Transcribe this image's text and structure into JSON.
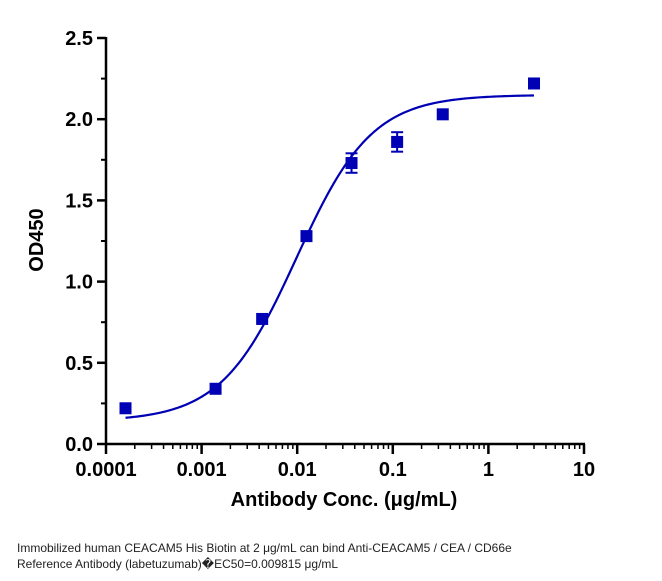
{
  "chart_data": {
    "type": "scatter",
    "xlabel": "Antibody Conc. (μg/mL)",
    "ylabel": "OD450",
    "x_scale": "log",
    "xlim": [
      0.0001,
      10
    ],
    "ylim": [
      0.0,
      2.5
    ],
    "x_ticks": [
      "0.0001",
      "0.001",
      "0.01",
      "0.1",
      "1",
      "10"
    ],
    "y_ticks": [
      "0.0",
      "0.5",
      "1.0",
      "1.5",
      "2.0",
      "2.5"
    ],
    "grid": false,
    "legend": "none",
    "color": "#0000b4",
    "points": [
      {
        "x": 0.00016,
        "y": 0.22,
        "err": 0.0
      },
      {
        "x": 0.0014,
        "y": 0.34,
        "err": 0.0
      },
      {
        "x": 0.0043,
        "y": 0.77,
        "err": 0.0
      },
      {
        "x": 0.0125,
        "y": 1.28,
        "err": 0.0
      },
      {
        "x": 0.037,
        "y": 1.73,
        "err": 0.06
      },
      {
        "x": 0.111,
        "y": 1.86,
        "err": 0.06
      },
      {
        "x": 0.333,
        "y": 2.03,
        "err": 0.0
      },
      {
        "x": 3.0,
        "y": 2.22,
        "err": 0.0
      }
    ],
    "fit": {
      "bottom": 0.14,
      "top": 2.15,
      "ec50": 0.009815,
      "hill": 1.1
    }
  },
  "caption": {
    "line1": "Immobilized human CEACAM5 His Biotin at 2  μg/mL can bind  Anti-CEACAM5 / CEA / CD66e",
    "line2": "Reference Antibody (labetuzumab)�EC50=0.009815 μg/mL"
  }
}
